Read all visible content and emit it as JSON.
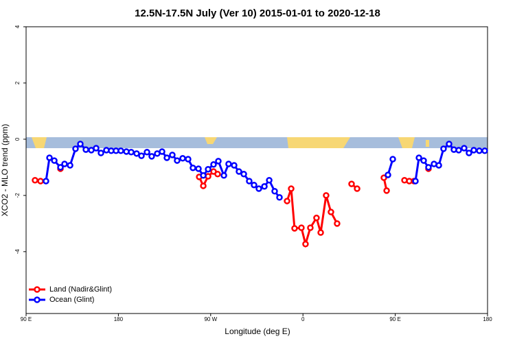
{
  "chart_data": {
    "type": "line",
    "title": "12.5N-17.5N July (Ver 10)   2015-01-01 to 2020-12-18",
    "x_label": "Longitude (deg E)",
    "y_label": "XCO2 - MLO trend (ppm)",
    "xlim": [
      90,
      540
    ],
    "ylim": [
      -6.2,
      4
    ],
    "xticks": [
      {
        "value": 90,
        "label": "90 E"
      },
      180,
      {
        "value": 270,
        "label": "90 W"
      },
      {
        "value": 360,
        "label": "0"
      },
      {
        "value": 450,
        "label": "90 E"
      },
      {
        "value": 540,
        "label": "180"
      }
    ],
    "yticks": [
      4,
      2,
      0,
      -2,
      -4
    ],
    "legend": "bottom-left",
    "series": [
      {
        "name": "Land (Nadir&Glint)",
        "color": "#ff0000",
        "x": [
          98.7,
          104.1,
          null,
          123.5,
          null,
          258.8,
          262.8,
          267.5,
          272.8,
          276.8,
          null,
          344.5,
          348.5,
          351.8,
          358.5,
          362.5,
          367.2,
          373.2,
          377.3,
          382.6,
          387.3,
          393.3,
          null,
          407.4,
          412.8,
          null,
          438.9,
          441.6,
          null,
          459.0,
          463.7,
          468.3,
          null,
          482.4
        ],
        "values": [
          -1.46,
          -1.49,
          null,
          -1.05,
          null,
          -1.34,
          -1.66,
          -1.32,
          -1.15,
          -1.24,
          null,
          -2.2,
          -1.76,
          -3.17,
          -3.15,
          -3.73,
          -3.15,
          -2.8,
          -3.32,
          -2.0,
          -2.59,
          -3.0,
          null,
          -1.59,
          -1.76,
          null,
          -1.37,
          -1.83,
          null,
          -1.46,
          -1.49,
          -1.49,
          null,
          -1.05
        ]
      },
      {
        "name": "Ocean (Glint)",
        "color": "#0000ff",
        "x": [
          109.4,
          112.8,
          117.5,
          123.5,
          127.5,
          132.9,
          138.2,
          142.9,
          148.3,
          153.6,
          158.3,
          163.0,
          168.3,
          173.0,
          177.7,
          182.4,
          187.8,
          192.5,
          197.8,
          202.5,
          207.9,
          212.5,
          217.9,
          222.6,
          227.3,
          232.6,
          237.3,
          242.7,
          248.0,
          252.7,
          258.1,
          262.8,
          267.5,
          272.8,
          277.5,
          282.9,
          287.5,
          292.9,
          297.6,
          302.3,
          307.6,
          312.3,
          317.0,
          322.4,
          327.1,
          332.4,
          337.1,
          null,
          442.9,
          447.6,
          null,
          469.7,
          473.1,
          477.7,
          482.4,
          487.8,
          492.5,
          497.1,
          502.5,
          507.2,
          511.9,
          517.2,
          521.9,
          526.6,
          532.0,
          537.3
        ],
        "values": [
          -1.49,
          -0.66,
          -0.76,
          -1.0,
          -0.88,
          -0.93,
          -0.34,
          -0.17,
          -0.37,
          -0.39,
          -0.32,
          -0.49,
          -0.39,
          -0.41,
          -0.41,
          -0.41,
          -0.44,
          -0.46,
          -0.51,
          -0.59,
          -0.46,
          -0.61,
          -0.51,
          -0.44,
          -0.66,
          -0.56,
          -0.76,
          -0.68,
          -0.71,
          -1.02,
          -1.05,
          -1.29,
          -1.07,
          -0.9,
          -0.78,
          -1.29,
          -0.88,
          -0.93,
          -1.15,
          -1.24,
          -1.49,
          -1.63,
          -1.76,
          -1.68,
          -1.46,
          -1.85,
          -2.07,
          null,
          -1.27,
          -0.71,
          null,
          -1.49,
          -0.66,
          -0.76,
          -1.0,
          -0.88,
          -0.93,
          -0.34,
          -0.17,
          -0.37,
          -0.39,
          -0.32,
          -0.49,
          -0.39,
          -0.41,
          -0.41
        ]
      }
    ]
  }
}
